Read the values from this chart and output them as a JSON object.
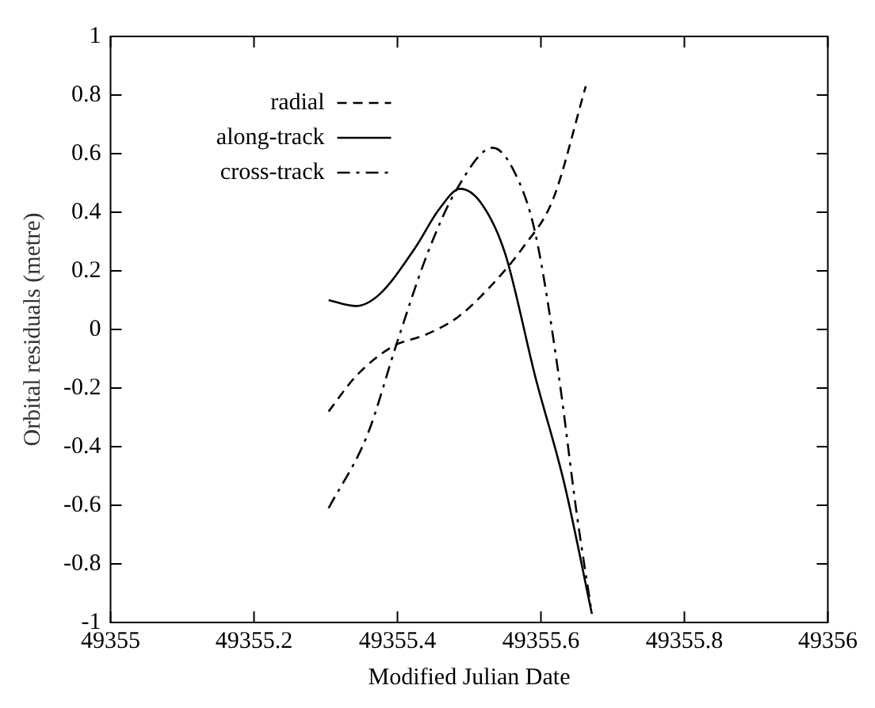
{
  "chart_data": {
    "type": "line",
    "xlabel": "Modified Julian Date",
    "ylabel": "Orbital residuals (metre)",
    "xlim": [
      49355,
      49356
    ],
    "xticks": [
      49355,
      49355.2,
      49355.4,
      49355.6,
      49355.8,
      49356
    ],
    "ylim": [
      -1,
      1
    ],
    "yticks": [
      -1,
      -0.8,
      -0.6,
      -0.4,
      -0.2,
      0,
      0.2,
      0.4,
      0.6,
      0.8,
      1
    ],
    "grid": false,
    "legend": "top left",
    "marker": "none",
    "series": [
      {
        "name": "radial",
        "color": "#000000",
        "line_style": "dashed",
        "x": [
          49355.304,
          49355.342,
          49355.392,
          49355.442,
          49355.483,
          49355.525,
          49355.575,
          49355.617,
          49355.6625
        ],
        "values": [
          -0.28,
          -0.16,
          -0.06,
          -0.015,
          0.04,
          0.135,
          0.28,
          0.445,
          0.83
        ]
      },
      {
        "name": "along-track",
        "color": "#000000",
        "line_style": "solid",
        "x": [
          49355.304,
          49355.342,
          49355.375,
          49355.425,
          49355.458,
          49355.4875,
          49355.517,
          49355.55,
          49355.592,
          49355.633,
          49355.671
        ],
        "values": [
          0.1,
          0.08,
          0.12,
          0.28,
          0.41,
          0.48,
          0.43,
          0.26,
          -0.16,
          -0.53,
          -0.97
        ]
      },
      {
        "name": "cross-track",
        "color": "#000000",
        "line_style": "dashdot",
        "x": [
          49355.304,
          49355.358,
          49355.4,
          49355.442,
          49355.483,
          49355.533,
          49355.5625,
          49355.592,
          49355.625,
          49355.65,
          49355.671
        ],
        "values": [
          -0.61,
          -0.36,
          -0.04,
          0.26,
          0.48,
          0.62,
          0.54,
          0.33,
          -0.16,
          -0.63,
          -0.97
        ]
      }
    ]
  }
}
